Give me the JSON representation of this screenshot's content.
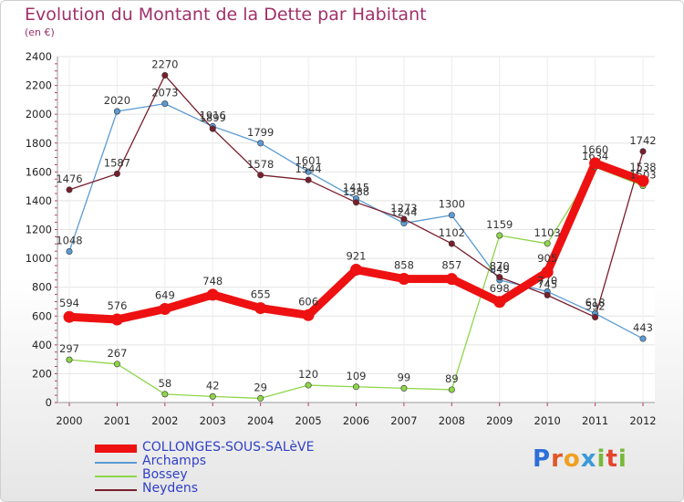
{
  "title": "Evolution du Montant de la Dette par Habitant",
  "subtitle": "(en €)",
  "brand": {
    "letters": [
      "P",
      "r",
      "o",
      "x",
      "i",
      "t",
      "i"
    ],
    "colors": [
      "#2e6fd8",
      "#e0572a",
      "#f0a020",
      "#3a9ad8",
      "#79b83a",
      "#e3452e",
      "#79b83a"
    ]
  },
  "chart_data": {
    "type": "line",
    "title": "Evolution du Montant de la Dette par Habitant",
    "subtitle": "(en €)",
    "x": [
      "2000",
      "2001",
      "2002",
      "2003",
      "2004",
      "2005",
      "2006",
      "2007",
      "2008",
      "2009",
      "2010",
      "2011",
      "2012"
    ],
    "ylim": [
      0,
      2400
    ],
    "yticks": [
      0,
      200,
      400,
      600,
      800,
      1000,
      1200,
      1400,
      1600,
      1800,
      2000,
      2200,
      2400
    ],
    "grid": true,
    "legend_position": "bottom-left",
    "series": [
      {
        "name": "COLLONGES-SOUS-SALèVE",
        "color": "#ee1111",
        "values": [
          594,
          576,
          649,
          748,
          655,
          606,
          921,
          858,
          857,
          698,
          905,
          1660,
          1538
        ]
      },
      {
        "name": "Archamps",
        "color": "#5b9bd5",
        "values": [
          1048,
          2020,
          2073,
          1916,
          1799,
          1601,
          1415,
          1244,
          1300,
          849,
          770,
          618,
          443
        ]
      },
      {
        "name": "Bossey",
        "color": "#8ed64a",
        "values": [
          297,
          267,
          58,
          42,
          29,
          120,
          109,
          99,
          89,
          1159,
          1103,
          1634,
          1503
        ]
      },
      {
        "name": "Neydens",
        "color": "#7a1e2c",
        "values": [
          1476,
          1587,
          2270,
          1899,
          1578,
          1544,
          1388,
          1273,
          1102,
          870,
          745,
          592,
          1742
        ]
      }
    ]
  }
}
